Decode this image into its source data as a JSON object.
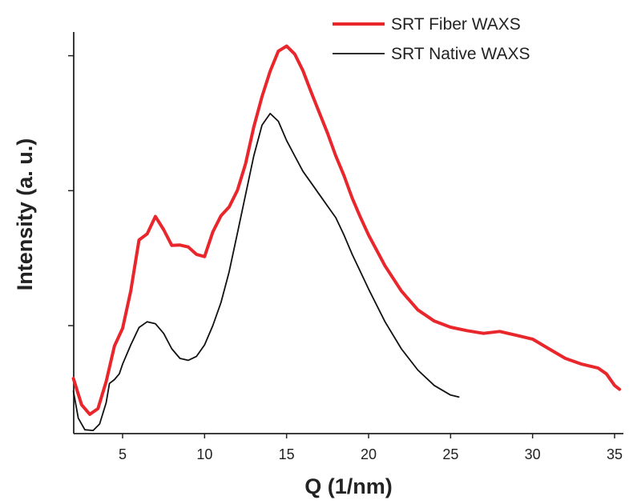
{
  "chart_data": {
    "type": "line",
    "xlabel": "Q (1/nm)",
    "ylabel": "Intensity (a. u.)",
    "xlim": [
      2,
      35.5
    ],
    "ylim": [
      0,
      100
    ],
    "x_ticks": [
      5,
      10,
      15,
      20,
      25,
      30,
      35
    ],
    "y_ticks_unlabeled": [
      28,
      63,
      98
    ],
    "grid": false,
    "legend_position": "top-right",
    "series": [
      {
        "name": "SRT Fiber WAXS",
        "color": "#e8262b",
        "points": [
          [
            2.0,
            14.3
          ],
          [
            2.5,
            7.5
          ],
          [
            3.0,
            5.0
          ],
          [
            3.5,
            6.5
          ],
          [
            4.0,
            13.5
          ],
          [
            4.5,
            22.7
          ],
          [
            5.0,
            27.3
          ],
          [
            5.5,
            37.0
          ],
          [
            6.0,
            50.2
          ],
          [
            6.5,
            51.8
          ],
          [
            7.0,
            56.3
          ],
          [
            7.5,
            52.9
          ],
          [
            8.0,
            48.8
          ],
          [
            8.5,
            48.9
          ],
          [
            9.0,
            48.4
          ],
          [
            9.5,
            46.5
          ],
          [
            10.0,
            45.9
          ],
          [
            10.5,
            52.3
          ],
          [
            11.0,
            56.5
          ],
          [
            11.5,
            58.8
          ],
          [
            12.0,
            63.1
          ],
          [
            12.5,
            70.0
          ],
          [
            13.0,
            79.5
          ],
          [
            13.5,
            87.4
          ],
          [
            14.0,
            94.0
          ],
          [
            14.5,
            99.2
          ],
          [
            15.0,
            100.5
          ],
          [
            15.5,
            98.4
          ],
          [
            16.0,
            94.1
          ],
          [
            16.5,
            88.5
          ],
          [
            17.0,
            83.2
          ],
          [
            17.5,
            77.9
          ],
          [
            18.0,
            72.0
          ],
          [
            18.5,
            66.9
          ],
          [
            19.0,
            61.1
          ],
          [
            19.5,
            56.1
          ],
          [
            20.0,
            51.5
          ],
          [
            21.0,
            43.5
          ],
          [
            22.0,
            37.0
          ],
          [
            23.0,
            32.1
          ],
          [
            24.0,
            29.2
          ],
          [
            25.0,
            27.6
          ],
          [
            26.0,
            26.7
          ],
          [
            27.0,
            26.0
          ],
          [
            28.0,
            26.5
          ],
          [
            29.0,
            25.5
          ],
          [
            30.0,
            24.5
          ],
          [
            31.0,
            22.0
          ],
          [
            32.0,
            19.5
          ],
          [
            33.0,
            18.0
          ],
          [
            34.0,
            17.0
          ],
          [
            34.5,
            15.5
          ],
          [
            35.0,
            12.5
          ],
          [
            35.3,
            11.5
          ]
        ]
      },
      {
        "name": "SRT Native WAXS",
        "color": "#111111",
        "points": [
          [
            2.0,
            11.0
          ],
          [
            2.3,
            4.0
          ],
          [
            2.7,
            1.0
          ],
          [
            3.2,
            0.8
          ],
          [
            3.6,
            2.5
          ],
          [
            4.0,
            8.0
          ],
          [
            4.2,
            13.0
          ],
          [
            4.5,
            14.0
          ],
          [
            4.8,
            15.5
          ],
          [
            5.0,
            18.0
          ],
          [
            5.5,
            23.0
          ],
          [
            6.0,
            27.5
          ],
          [
            6.5,
            29.0
          ],
          [
            7.0,
            28.5
          ],
          [
            7.5,
            26.0
          ],
          [
            8.0,
            22.0
          ],
          [
            8.5,
            19.5
          ],
          [
            9.0,
            19.0
          ],
          [
            9.5,
            20.0
          ],
          [
            10.0,
            23.0
          ],
          [
            10.5,
            28.0
          ],
          [
            11.0,
            34.0
          ],
          [
            11.5,
            42.0
          ],
          [
            12.0,
            52.0
          ],
          [
            12.5,
            62.0
          ],
          [
            13.0,
            72.0
          ],
          [
            13.5,
            80.0
          ],
          [
            14.0,
            83.0
          ],
          [
            14.5,
            81.0
          ],
          [
            15.0,
            76.0
          ],
          [
            15.5,
            72.0
          ],
          [
            16.0,
            68.0
          ],
          [
            16.5,
            65.0
          ],
          [
            17.0,
            62.0
          ],
          [
            17.5,
            59.0
          ],
          [
            18.0,
            56.0
          ],
          [
            18.5,
            51.5
          ],
          [
            19.0,
            46.5
          ],
          [
            19.5,
            42.0
          ],
          [
            20.0,
            37.5
          ],
          [
            21.0,
            29.0
          ],
          [
            22.0,
            22.0
          ],
          [
            23.0,
            16.5
          ],
          [
            24.0,
            12.5
          ],
          [
            25.0,
            10.0
          ],
          [
            25.5,
            9.5
          ]
        ]
      }
    ]
  }
}
